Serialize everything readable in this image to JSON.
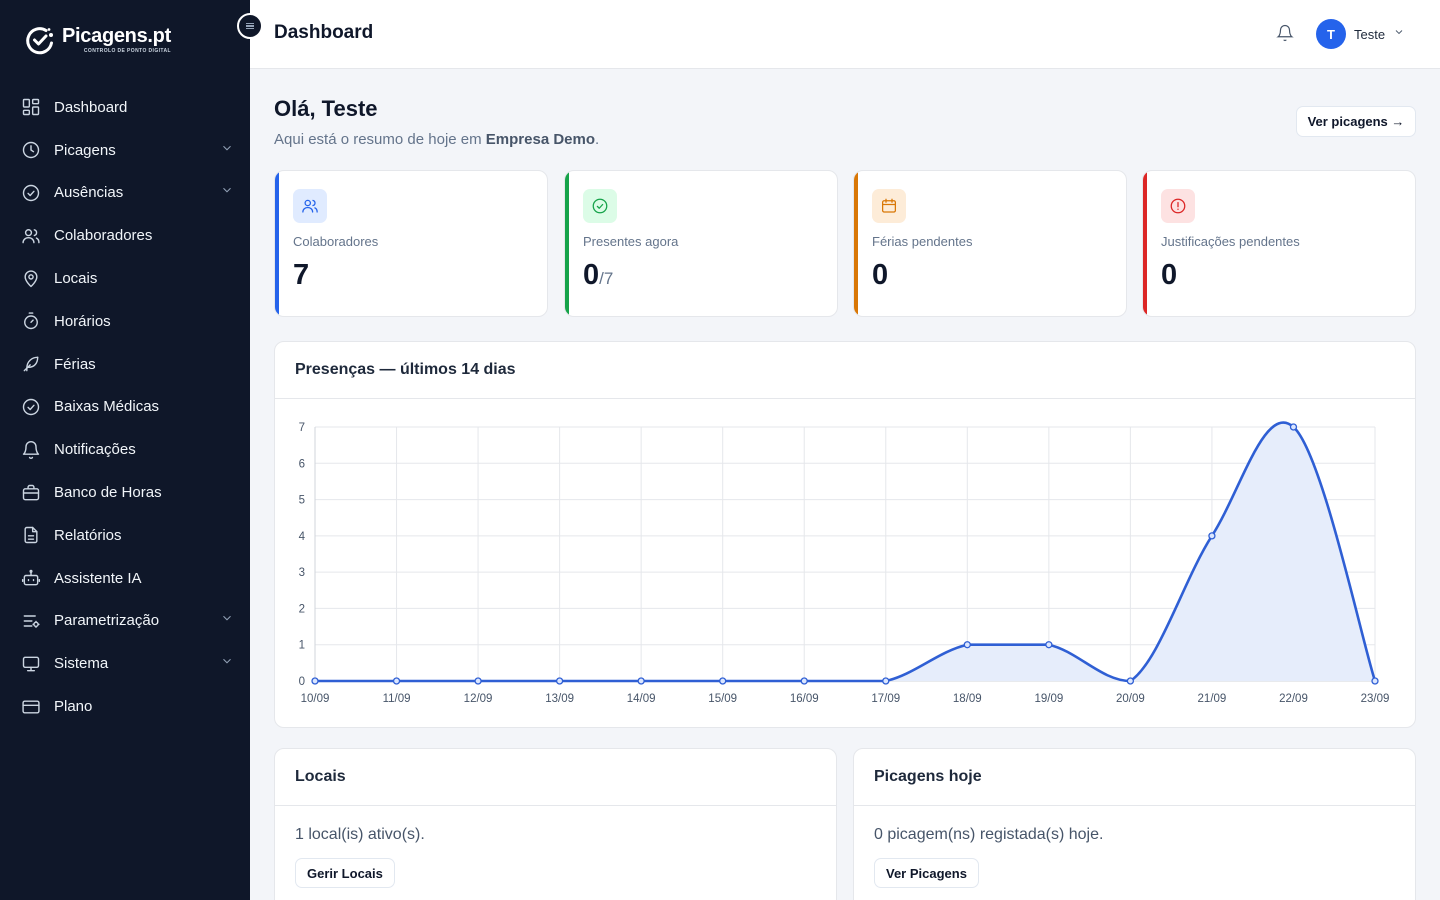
{
  "brand": {
    "name": "Picagens.pt",
    "tagline": "CONTROLO DE PONTO DIGITAL"
  },
  "sidebar": {
    "items": [
      {
        "label": "Dashboard",
        "icon": "grid-icon",
        "expandable": false
      },
      {
        "label": "Picagens",
        "icon": "clock-icon",
        "expandable": true
      },
      {
        "label": "Ausências",
        "icon": "check-circle-icon",
        "expandable": true
      },
      {
        "label": "Colaboradores",
        "icon": "users-icon",
        "expandable": false
      },
      {
        "label": "Locais",
        "icon": "map-pin-icon",
        "expandable": false
      },
      {
        "label": "Horários",
        "icon": "timer-icon",
        "expandable": false
      },
      {
        "label": "Férias",
        "icon": "feather-icon",
        "expandable": false
      },
      {
        "label": "Baixas Médicas",
        "icon": "check-circle-icon",
        "expandable": false
      },
      {
        "label": "Notificações",
        "icon": "bell-icon",
        "expandable": false
      },
      {
        "label": "Banco de Horas",
        "icon": "briefcase-icon",
        "expandable": false
      },
      {
        "label": "Relatórios",
        "icon": "file-text-icon",
        "expandable": false
      },
      {
        "label": "Assistente IA",
        "icon": "bot-icon",
        "expandable": false
      },
      {
        "label": "Parametrização",
        "icon": "settings-list-icon",
        "expandable": true
      },
      {
        "label": "Sistema",
        "icon": "monitor-icon",
        "expandable": true
      },
      {
        "label": "Plano",
        "icon": "credit-card-icon",
        "expandable": false
      }
    ]
  },
  "topbar": {
    "title": "Dashboard",
    "user_initial": "T",
    "user_name": "Teste"
  },
  "main": {
    "greeting": "Olá, Teste",
    "subtitle_prefix": "Aqui está o resumo de hoje em ",
    "company": "Empresa Demo",
    "subtitle_suffix": ".",
    "ver_picagens_label": "Ver picagens →"
  },
  "stats": [
    {
      "label": "Colaboradores",
      "value": "7",
      "sub": "",
      "color": "#2563eb",
      "bg": "#e0ebff",
      "icon": "users-icon"
    },
    {
      "label": "Presentes agora",
      "value": "0",
      "sub": "/7",
      "color": "#16a34a",
      "bg": "#dcfce7",
      "icon": "check-circle-icon"
    },
    {
      "label": "Férias pendentes",
      "value": "0",
      "sub": "",
      "color": "#d97706",
      "bg": "#fdecd8",
      "icon": "calendar-icon"
    },
    {
      "label": "Justificações pendentes",
      "value": "0",
      "sub": "",
      "color": "#dc2626",
      "bg": "#fde2e2",
      "icon": "alert-circle-icon"
    }
  ],
  "chart_panel": {
    "title": "Presenças — últimos 14 dias"
  },
  "chart_data": {
    "type": "area",
    "title": "Presenças — últimos 14 dias",
    "categories": [
      "10/09",
      "11/09",
      "12/09",
      "13/09",
      "14/09",
      "15/09",
      "16/09",
      "17/09",
      "18/09",
      "19/09",
      "20/09",
      "21/09",
      "22/09",
      "23/09"
    ],
    "values": [
      0,
      0,
      0,
      0,
      0,
      0,
      0,
      0,
      1,
      1,
      0,
      4,
      7,
      0
    ],
    "ylim": [
      0,
      7
    ],
    "yticks": [
      0,
      1,
      2,
      3,
      4,
      5,
      6,
      7
    ],
    "grid": true,
    "color": "#2f5fd4",
    "fill": "#e6edfb"
  },
  "cards": {
    "locais": {
      "title": "Locais",
      "text": "1 local(is) ativo(s).",
      "button": "Gerir Locais"
    },
    "picagens": {
      "title": "Picagens hoje",
      "text": "0 picagem(ns) registada(s) hoje.",
      "button": "Ver Picagens"
    }
  }
}
